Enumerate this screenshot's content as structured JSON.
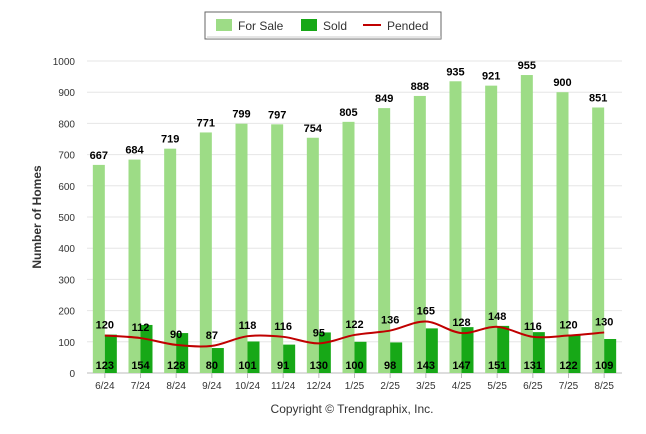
{
  "chart_data": {
    "type": "bar",
    "title": "",
    "xlabel": "",
    "ylabel": "Number of Homes",
    "ylim": [
      0,
      1000
    ],
    "yticks": [
      0,
      100,
      200,
      300,
      400,
      500,
      600,
      700,
      800,
      900,
      1000
    ],
    "grid": true,
    "legend": "top-center",
    "categories": [
      "6/24",
      "7/24",
      "8/24",
      "9/24",
      "10/24",
      "11/24",
      "12/24",
      "1/25",
      "2/25",
      "3/25",
      "4/25",
      "5/25",
      "6/25",
      "7/25",
      "8/25"
    ],
    "series": [
      {
        "name": "For Sale",
        "type": "bar",
        "color": "#9ddc86",
        "values": [
          667,
          684,
          719,
          771,
          799,
          797,
          754,
          805,
          849,
          888,
          935,
          921,
          955,
          900,
          851
        ]
      },
      {
        "name": "Sold",
        "type": "bar",
        "color": "#17a817",
        "values": [
          123,
          154,
          128,
          80,
          101,
          91,
          130,
          100,
          98,
          143,
          147,
          151,
          131,
          122,
          109
        ]
      },
      {
        "name": "Pended",
        "type": "line",
        "color": "#c00000",
        "values": [
          120,
          112,
          90,
          87,
          118,
          116,
          95,
          122,
          136,
          165,
          128,
          148,
          116,
          120,
          130
        ]
      }
    ]
  },
  "footer": {
    "copyright": "Copyright © Trendgraphix, Inc."
  }
}
